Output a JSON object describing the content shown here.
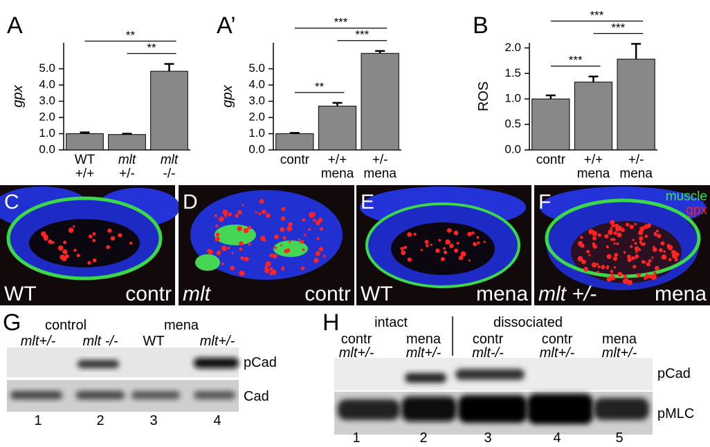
{
  "chart_data": [
    {
      "type": "bar",
      "label": "A",
      "ylabel": "gpx",
      "categories": [
        [
          "WT",
          "+/+"
        ],
        [
          "mlt",
          "+/-"
        ],
        [
          "mlt",
          "-/-"
        ]
      ],
      "values": [
        1.0,
        0.95,
        4.85
      ],
      "errors": [
        0.08,
        0.05,
        0.45
      ],
      "color": "#888888",
      "ylim": [
        0,
        6.6
      ],
      "yticks": [
        {
          "value": 0,
          "label": "0.0"
        },
        {
          "value": 1,
          "label": "1.0"
        },
        {
          "value": 2,
          "label": "2.0"
        },
        {
          "value": 3,
          "label": "3.0"
        },
        {
          "value": 4,
          "label": "4.0"
        },
        {
          "value": 5,
          "label": "5.0"
        }
      ],
      "significance": [
        {
          "from": 0,
          "to": 2,
          "label": "**"
        },
        {
          "from": 1,
          "to": 2,
          "label": "**"
        }
      ]
    },
    {
      "type": "bar",
      "label": "A’",
      "ylabel": "gpx",
      "categories": [
        [
          "contr"
        ],
        [
          "+/+",
          "mena"
        ],
        [
          "+/-",
          "mena"
        ]
      ],
      "values": [
        1.0,
        2.7,
        5.95
      ],
      "errors": [
        0.05,
        0.2,
        0.15
      ],
      "color": "#888888",
      "ylim": [
        0,
        6.6
      ],
      "yticks": [
        {
          "value": 0,
          "label": "0.0"
        },
        {
          "value": 1,
          "label": "1.0"
        },
        {
          "value": 2,
          "label": "2.0"
        },
        {
          "value": 3,
          "label": "3.0"
        },
        {
          "value": 4,
          "label": "4.0"
        },
        {
          "value": 5,
          "label": "5.0"
        }
      ],
      "significance": [
        {
          "from": 0,
          "to": 1,
          "label": "**"
        },
        {
          "from": 0,
          "to": 2,
          "label": "***"
        },
        {
          "from": 1,
          "to": 2,
          "label": "***"
        }
      ]
    },
    {
      "type": "bar",
      "label": "B",
      "ylabel": "ROS",
      "categories": [
        [
          "contr"
        ],
        [
          "+/+",
          "mena"
        ],
        [
          "+/-",
          "mena"
        ]
      ],
      "values": [
        1.0,
        1.33,
        1.78
      ],
      "errors": [
        0.07,
        0.11,
        0.3
      ],
      "color": "#888888",
      "ylim": [
        0,
        2.1
      ],
      "yticks": [
        {
          "value": 0,
          "label": "0.0"
        },
        {
          "value": 0.5,
          "label": "0.5"
        },
        {
          "value": 1,
          "label": "1.0"
        },
        {
          "value": 1.5,
          "label": "1.5"
        },
        {
          "value": 2,
          "label": "2.0"
        }
      ],
      "significance": [
        {
          "from": 0,
          "to": 1,
          "label": "***"
        },
        {
          "from": 0,
          "to": 2,
          "label": "***"
        },
        {
          "from": 1,
          "to": 2,
          "label": "***"
        }
      ]
    }
  ],
  "images": [
    {
      "letter": "C",
      "left": "WT",
      "right": "contr"
    },
    {
      "letter": "D",
      "left": "mlt",
      "right": "contr"
    },
    {
      "letter": "E",
      "left": "WT",
      "right": "mena"
    },
    {
      "letter": "F",
      "left": "mlt +/-",
      "right": "mena",
      "legend": [
        "muscle",
        "gpx"
      ]
    }
  ],
  "blot_g": {
    "letter": "G",
    "groups": [
      "control",
      "mena"
    ],
    "lanes": [
      "mlt+/-",
      "mlt -/-",
      "WT",
      "mlt+/-"
    ],
    "bands": [
      "pCad",
      "Cad"
    ],
    "numbers": [
      1,
      2,
      3,
      4
    ]
  },
  "blot_h": {
    "letter": "H",
    "groups": [
      "intact",
      "dissociated"
    ],
    "lanes": [
      [
        "contr",
        "mlt+/-"
      ],
      [
        "mena",
        "mlt+/-"
      ],
      [
        "contr",
        "mlt-/-"
      ],
      [
        "contr",
        "mlt+/-"
      ],
      [
        "mena",
        "mlt+/-"
      ]
    ],
    "bands": [
      "pCad",
      "pMLC"
    ],
    "numbers": [
      1,
      2,
      3,
      4,
      5
    ]
  }
}
